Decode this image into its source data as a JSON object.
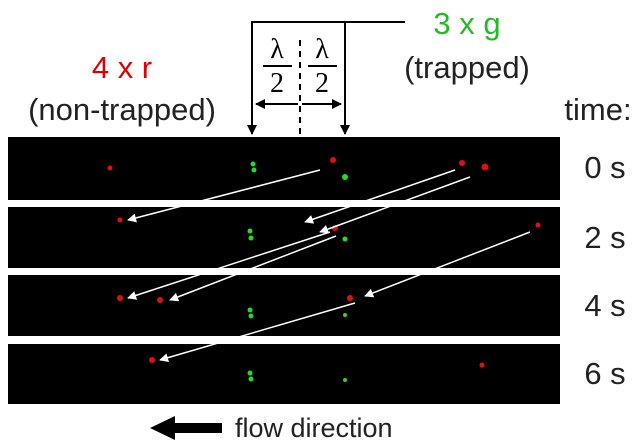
{
  "labels": {
    "red_group": "4 x r",
    "red_note": "(non-trapped)",
    "green_group": "3 x g",
    "green_note": "(trapped)",
    "time_header": "time:",
    "flow": "flow direction"
  },
  "spacing": [
    {
      "numerator": "λ",
      "denominator": "2"
    },
    {
      "numerator": "λ",
      "denominator": "2"
    }
  ],
  "frames": [
    {
      "time": "0 s"
    },
    {
      "time": "2 s"
    },
    {
      "time": "4 s"
    },
    {
      "time": "6 s"
    }
  ]
}
